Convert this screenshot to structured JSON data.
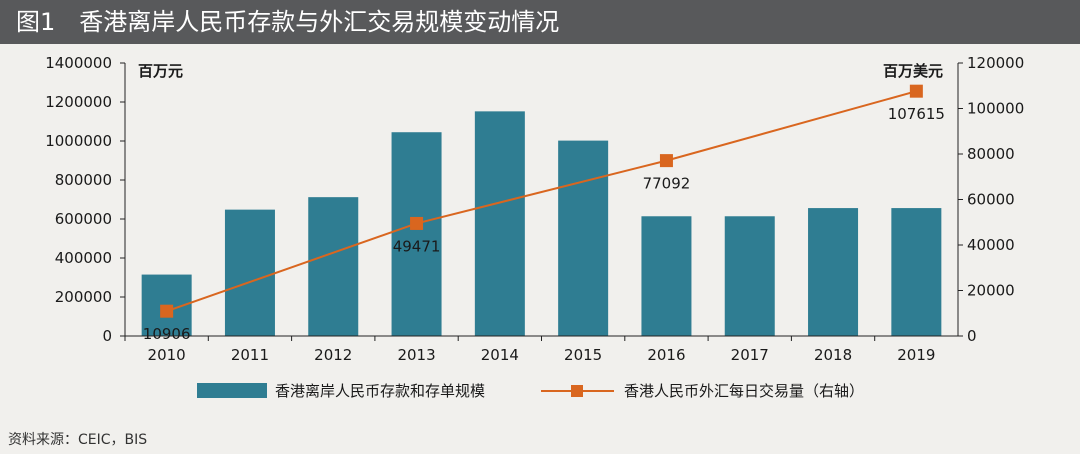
{
  "title": "图1　香港离岸人民币存款与外汇交易规模变动情况",
  "source": "资料来源：CEIC，BIS",
  "colors": {
    "bar": "#2f7d92",
    "line": "#d9661f",
    "axis": "#222222",
    "title_bg": "#58595b"
  },
  "chart_data": {
    "type": "bar",
    "categories": [
      "2010",
      "2011",
      "2012",
      "2013",
      "2014",
      "2015",
      "2016",
      "2017",
      "2018",
      "2019"
    ],
    "series": [
      {
        "name": "香港离岸人民币存款和存单规模",
        "type": "bar",
        "axis": "left",
        "values": [
          315000,
          648000,
          712000,
          1045000,
          1152000,
          1002000,
          614000,
          614000,
          656000,
          656000
        ]
      },
      {
        "name": "香港人民币外汇每日交易量（右轴）",
        "type": "line",
        "axis": "right",
        "x": [
          "2010",
          "2013",
          "2016",
          "2019"
        ],
        "values": [
          10906,
          49471,
          77092,
          107615
        ],
        "data_labels": [
          "10906",
          "49471",
          "77092",
          "107615"
        ]
      }
    ],
    "y_left": {
      "unit": "百万元",
      "ylim": [
        0,
        1400000
      ],
      "ticks": [
        "0",
        "200000",
        "400000",
        "600000",
        "800000",
        "1000000",
        "1200000",
        "1400000"
      ]
    },
    "y_right": {
      "unit": "百万美元",
      "ylim": [
        0,
        120000
      ],
      "ticks": [
        "0",
        "20000",
        "40000",
        "60000",
        "80000",
        "100000",
        "120000"
      ]
    },
    "legend": "bottom",
    "grid": false
  }
}
